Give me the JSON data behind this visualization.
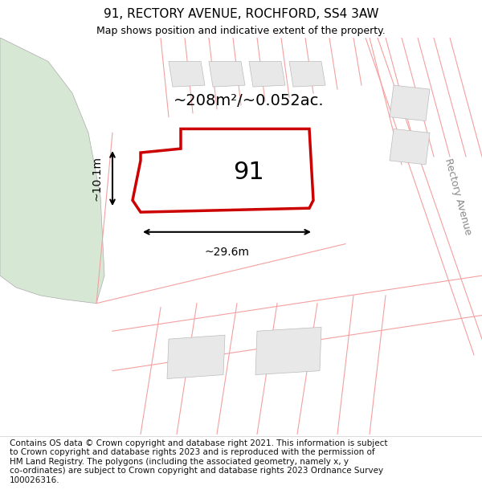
{
  "title": "91, RECTORY AVENUE, ROCHFORD, SS4 3AW",
  "subtitle": "Map shows position and indicative extent of the property.",
  "footer_text": "Contains OS data © Crown copyright and database right 2021. This information is subject\nto Crown copyright and database rights 2023 and is reproduced with the permission of\nHM Land Registry. The polygons (including the associated geometry, namely x, y\nco-ordinates) are subject to Crown copyright and database rights 2023 Ordnance Survey\n100026316.",
  "area_label": "~208m²/~0.052ac.",
  "width_label": "~29.6m",
  "height_label": "~10.1m",
  "plot_number": "91",
  "bg_color": "#ffffff",
  "green_area": "#d6e8d4",
  "pink_line": "#f4a0a0",
  "red_outline": "#cc0000",
  "street_label": "Rectory Avenue",
  "title_fontsize": 11,
  "subtitle_fontsize": 9,
  "footer_fontsize": 7.5
}
